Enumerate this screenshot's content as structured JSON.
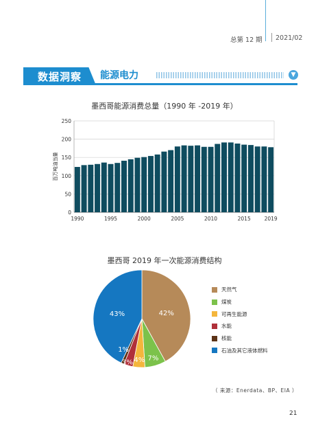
{
  "header": {
    "issue_label": "总第 12 期",
    "date_label": "2021/02",
    "section_label": "数据洞察",
    "subsection_label": "能源电力",
    "chevron_icon": "chevron-down-icon"
  },
  "chart_data": [
    {
      "type": "bar",
      "title": "墨西哥能源消费总量（1990 年 -2019 年）",
      "ylabel": "百万吨油当量",
      "xlabel": "",
      "ylim": [
        0,
        250
      ],
      "yticks": [
        "0",
        "50",
        "100",
        "150",
        "200",
        "250"
      ],
      "xtick_labels": [
        "1990",
        "1995",
        "2000",
        "2005",
        "2010",
        "2015",
        "2019"
      ],
      "categories": [
        "1990",
        "1991",
        "1992",
        "1993",
        "1994",
        "1995",
        "1996",
        "1997",
        "1998",
        "1999",
        "2000",
        "2001",
        "2002",
        "2003",
        "2004",
        "2005",
        "2006",
        "2007",
        "2008",
        "2009",
        "2010",
        "2011",
        "2012",
        "2013",
        "2014",
        "2015",
        "2016",
        "2017",
        "2018",
        "2019"
      ],
      "values": [
        124,
        129,
        130,
        132,
        136,
        132,
        135,
        141,
        145,
        149,
        151,
        154,
        158,
        166,
        170,
        180,
        183,
        182,
        183,
        179,
        179,
        187,
        191,
        191,
        188,
        185,
        184,
        180,
        180,
        178
      ],
      "color": "#0f4c5f",
      "grid": "horizontal"
    },
    {
      "type": "pie",
      "title": "墨西哥 2019 年一次能源消费结构",
      "categories": [
        "天然气",
        "煤炭",
        "可再生能源",
        "水能",
        "核能",
        "石油及其它液体燃料"
      ],
      "values": [
        42,
        7,
        4,
        3,
        1,
        43
      ],
      "labels": [
        "42%",
        "7%",
        "4%",
        "3%",
        "1%",
        "43%"
      ],
      "colors": [
        "#b68a59",
        "#7cc24b",
        "#f4b63c",
        "#b0303a",
        "#5c3317",
        "#1577c1"
      ],
      "legend": "right"
    }
  ],
  "footer": {
    "source": "（ 来源：Enerdata、BP、EIA ）",
    "page_number": "21"
  }
}
